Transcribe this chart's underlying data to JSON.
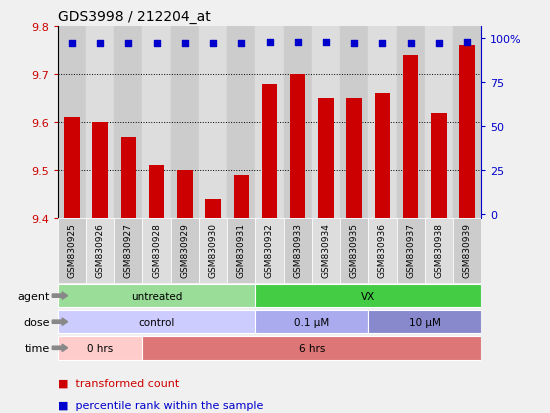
{
  "title": "GDS3998 / 212204_at",
  "samples": [
    "GSM830925",
    "GSM830926",
    "GSM830927",
    "GSM830928",
    "GSM830929",
    "GSM830930",
    "GSM830931",
    "GSM830932",
    "GSM830933",
    "GSM830934",
    "GSM830935",
    "GSM830936",
    "GSM830937",
    "GSM830938",
    "GSM830939"
  ],
  "bar_values": [
    9.61,
    9.6,
    9.57,
    9.51,
    9.5,
    9.44,
    9.49,
    9.68,
    9.7,
    9.65,
    9.65,
    9.66,
    9.74,
    9.62,
    9.76
  ],
  "percentile_values": [
    97,
    97,
    97,
    97,
    97,
    97,
    97,
    98,
    98,
    98,
    97,
    97,
    97,
    97,
    98
  ],
  "ylim": [
    9.4,
    9.8
  ],
  "yticks": [
    9.4,
    9.5,
    9.6,
    9.7,
    9.8
  ],
  "y2ticks": [
    0,
    25,
    50,
    75,
    100
  ],
  "y2tick_labels": [
    "0",
    "25",
    "50",
    "75",
    "100%"
  ],
  "bar_color": "#cc0000",
  "dot_color": "#0000cc",
  "plot_bg": "#ffffff",
  "fig_bg": "#f0f0f0",
  "tick_bg_even": "#cccccc",
  "tick_bg_odd": "#dddddd",
  "agent_row": {
    "label": "agent",
    "segments": [
      {
        "text": "untreated",
        "start": 0,
        "end": 7,
        "color": "#99dd99"
      },
      {
        "text": "VX",
        "start": 7,
        "end": 15,
        "color": "#44cc44"
      }
    ]
  },
  "dose_row": {
    "label": "dose",
    "segments": [
      {
        "text": "control",
        "start": 0,
        "end": 7,
        "color": "#ccccff"
      },
      {
        "text": "0.1 μM",
        "start": 7,
        "end": 11,
        "color": "#aaaaee"
      },
      {
        "text": "10 μM",
        "start": 11,
        "end": 15,
        "color": "#8888cc"
      }
    ]
  },
  "time_row": {
    "label": "time",
    "segments": [
      {
        "text": "0 hrs",
        "start": 0,
        "end": 3,
        "color": "#ffcccc"
      },
      {
        "text": "6 hrs",
        "start": 3,
        "end": 15,
        "color": "#dd7777"
      }
    ]
  },
  "legend_items": [
    {
      "color": "#cc0000",
      "label": "transformed count"
    },
    {
      "color": "#0000cc",
      "label": "percentile rank within the sample"
    }
  ]
}
